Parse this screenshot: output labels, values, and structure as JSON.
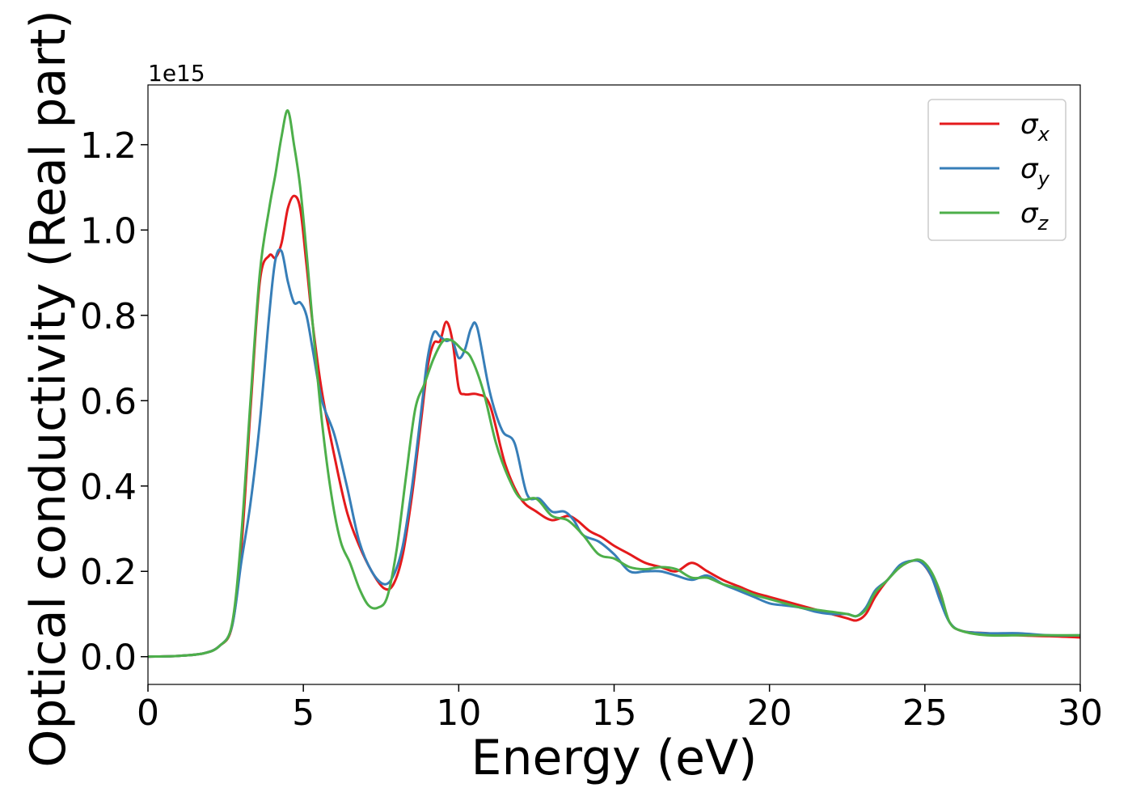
{
  "chart_data": {
    "type": "line",
    "title": "",
    "xlabel": "Energy (eV)",
    "ylabel": "Optical conductivity (Real part)",
    "y_offset_label": "1e15",
    "xlim": [
      0,
      30
    ],
    "ylim": [
      -0.065,
      1.34
    ],
    "x_ticks": [
      0,
      5,
      10,
      15,
      20,
      25,
      30
    ],
    "x_tick_labels": [
      "0",
      "5",
      "10",
      "15",
      "20",
      "25",
      "30"
    ],
    "y_ticks": [
      0.0,
      0.2,
      0.4,
      0.6,
      0.8,
      1.0,
      1.2
    ],
    "y_tick_labels": [
      "0.0",
      "0.2",
      "0.4",
      "0.6",
      "0.8",
      "1.0",
      "1.2"
    ],
    "grid": false,
    "legend_position": "top-right",
    "series": [
      {
        "name": "σ",
        "subscript": "x",
        "color": "#e41a1c",
        "x": [
          0,
          1,
          1.8,
          2.3,
          2.7,
          3.0,
          3.3,
          3.6,
          3.9,
          4.1,
          4.3,
          4.5,
          4.7,
          4.9,
          5.1,
          5.3,
          5.6,
          6.0,
          6.4,
          6.8,
          7.2,
          7.6,
          7.9,
          8.2,
          8.5,
          8.8,
          9.0,
          9.2,
          9.4,
          9.6,
          9.8,
          10.0,
          10.2,
          10.6,
          11.0,
          11.5,
          12.0,
          12.5,
          13.0,
          13.5,
          13.8,
          14.2,
          14.6,
          15.0,
          15.5,
          16.0,
          16.5,
          17.0,
          17.5,
          18.0,
          18.5,
          19.0,
          19.5,
          20.0,
          20.5,
          21.0,
          21.5,
          22.0,
          22.5,
          22.8,
          23.1,
          23.4,
          23.8,
          24.2,
          24.6,
          24.9,
          25.2,
          25.5,
          25.8,
          26.2,
          27.0,
          28.0,
          29.0,
          30.0
        ],
        "y": [
          0.0,
          0.002,
          0.008,
          0.025,
          0.07,
          0.25,
          0.58,
          0.88,
          0.94,
          0.935,
          0.97,
          1.05,
          1.08,
          1.05,
          0.92,
          0.78,
          0.62,
          0.47,
          0.34,
          0.26,
          0.2,
          0.16,
          0.17,
          0.24,
          0.38,
          0.56,
          0.68,
          0.735,
          0.74,
          0.785,
          0.74,
          0.63,
          0.615,
          0.615,
          0.59,
          0.45,
          0.37,
          0.34,
          0.32,
          0.33,
          0.32,
          0.295,
          0.28,
          0.26,
          0.24,
          0.22,
          0.21,
          0.2,
          0.22,
          0.2,
          0.18,
          0.165,
          0.15,
          0.14,
          0.13,
          0.12,
          0.11,
          0.1,
          0.09,
          0.085,
          0.1,
          0.14,
          0.18,
          0.21,
          0.225,
          0.22,
          0.19,
          0.14,
          0.08,
          0.06,
          0.055,
          0.05,
          0.048,
          0.045
        ]
      },
      {
        "name": "σ",
        "subscript": "y",
        "color": "#377eb8",
        "x": [
          0,
          1,
          1.8,
          2.3,
          2.7,
          3.0,
          3.3,
          3.6,
          3.9,
          4.1,
          4.3,
          4.5,
          4.7,
          4.9,
          5.1,
          5.3,
          5.6,
          6.0,
          6.4,
          6.8,
          7.2,
          7.6,
          7.9,
          8.2,
          8.5,
          8.8,
          9.0,
          9.2,
          9.4,
          9.6,
          9.8,
          10.0,
          10.2,
          10.4,
          10.6,
          11.0,
          11.4,
          11.8,
          12.2,
          12.6,
          13.0,
          13.4,
          13.7,
          14.0,
          14.5,
          15.0,
          15.5,
          16.0,
          16.5,
          17.0,
          17.5,
          18.0,
          18.5,
          19.0,
          19.5,
          20.0,
          20.5,
          21.0,
          21.5,
          22.0,
          22.5,
          22.8,
          23.1,
          23.4,
          23.8,
          24.2,
          24.6,
          24.9,
          25.2,
          25.5,
          25.8,
          26.2,
          27.0,
          28.0,
          29.0,
          30.0
        ],
        "y": [
          0.0,
          0.002,
          0.008,
          0.025,
          0.07,
          0.22,
          0.36,
          0.55,
          0.8,
          0.93,
          0.95,
          0.88,
          0.83,
          0.83,
          0.8,
          0.72,
          0.6,
          0.52,
          0.4,
          0.27,
          0.2,
          0.17,
          0.19,
          0.26,
          0.4,
          0.58,
          0.7,
          0.76,
          0.75,
          0.74,
          0.74,
          0.7,
          0.72,
          0.77,
          0.77,
          0.62,
          0.53,
          0.5,
          0.38,
          0.37,
          0.34,
          0.34,
          0.32,
          0.285,
          0.27,
          0.24,
          0.2,
          0.2,
          0.2,
          0.19,
          0.18,
          0.19,
          0.17,
          0.155,
          0.14,
          0.125,
          0.12,
          0.115,
          0.105,
          0.1,
          0.1,
          0.095,
          0.115,
          0.155,
          0.18,
          0.215,
          0.225,
          0.22,
          0.19,
          0.13,
          0.08,
          0.06,
          0.055,
          0.055,
          0.05,
          0.05
        ]
      },
      {
        "name": "σ",
        "subscript": "z",
        "color": "#4daf4a",
        "x": [
          0,
          1,
          1.8,
          2.3,
          2.7,
          3.0,
          3.3,
          3.6,
          3.9,
          4.1,
          4.3,
          4.5,
          4.7,
          4.9,
          5.1,
          5.3,
          5.6,
          5.9,
          6.2,
          6.5,
          6.8,
          7.1,
          7.4,
          7.7,
          8.0,
          8.3,
          8.6,
          8.9,
          9.2,
          9.5,
          9.8,
          10.1,
          10.4,
          10.8,
          11.2,
          11.6,
          12.0,
          12.5,
          13.0,
          13.5,
          14.0,
          14.5,
          15.0,
          15.5,
          16.0,
          16.5,
          17.0,
          17.5,
          18.0,
          18.5,
          19.0,
          19.5,
          20.0,
          20.5,
          21.0,
          21.5,
          22.0,
          22.5,
          22.8,
          23.1,
          23.4,
          23.8,
          24.2,
          24.6,
          24.9,
          25.2,
          25.5,
          25.8,
          26.2,
          27.0,
          28.0,
          29.0,
          30.0
        ],
        "y": [
          0.0,
          0.002,
          0.008,
          0.025,
          0.075,
          0.28,
          0.6,
          0.9,
          1.05,
          1.13,
          1.22,
          1.28,
          1.2,
          1.1,
          0.95,
          0.78,
          0.55,
          0.38,
          0.27,
          0.22,
          0.16,
          0.12,
          0.115,
          0.14,
          0.25,
          0.42,
          0.58,
          0.64,
          0.7,
          0.74,
          0.74,
          0.72,
          0.7,
          0.62,
          0.5,
          0.42,
          0.37,
          0.37,
          0.33,
          0.32,
          0.285,
          0.24,
          0.23,
          0.21,
          0.205,
          0.21,
          0.205,
          0.185,
          0.185,
          0.17,
          0.16,
          0.145,
          0.135,
          0.125,
          0.115,
          0.11,
          0.105,
          0.1,
          0.095,
          0.11,
          0.15,
          0.18,
          0.21,
          0.225,
          0.225,
          0.2,
          0.15,
          0.08,
          0.06,
          0.05,
          0.05,
          0.05,
          0.05
        ]
      }
    ]
  }
}
